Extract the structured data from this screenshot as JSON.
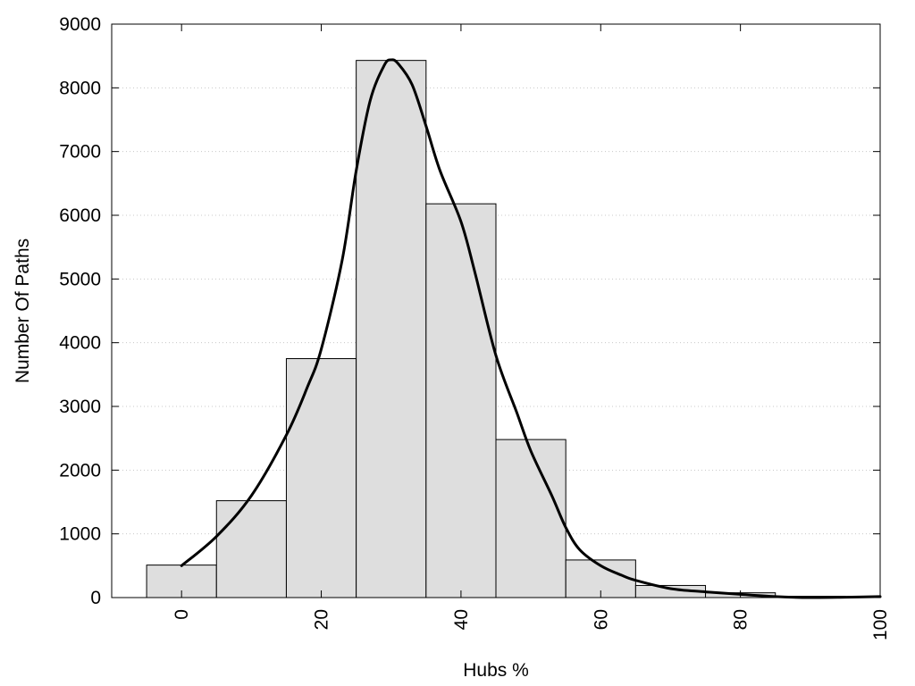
{
  "chart_data": {
    "type": "bar",
    "xlabel": "Hubs %",
    "ylabel": "Number Of Paths",
    "xlim": [
      -10,
      100
    ],
    "ylim": [
      0,
      9000
    ],
    "x_ticks": [
      0,
      20,
      40,
      60,
      80,
      100
    ],
    "y_ticks": [
      0,
      1000,
      2000,
      3000,
      4000,
      5000,
      6000,
      7000,
      8000,
      9000
    ],
    "grid": "horizontal-dotted",
    "bin_width": 10,
    "bins": [
      {
        "center": 0,
        "value": 510
      },
      {
        "center": 10,
        "value": 1520
      },
      {
        "center": 20,
        "value": 3750
      },
      {
        "center": 30,
        "value": 8430
      },
      {
        "center": 40,
        "value": 6180
      },
      {
        "center": 50,
        "value": 2480
      },
      {
        "center": 60,
        "value": 590
      },
      {
        "center": 70,
        "value": 190
      },
      {
        "center": 80,
        "value": 75
      },
      {
        "center": 90,
        "value": 20
      }
    ],
    "curve": {
      "x": [
        0,
        5,
        10,
        15,
        18,
        20,
        23,
        25,
        27,
        29,
        30,
        31,
        33,
        35,
        37,
        40,
        42,
        45,
        48,
        50,
        53,
        55,
        57,
        60,
        63,
        65,
        70,
        75,
        80,
        85,
        90,
        95,
        100
      ],
      "y": [
        500,
        960,
        1600,
        2550,
        3300,
        3900,
        5300,
        6700,
        7800,
        8350,
        8440,
        8380,
        8050,
        7400,
        6700,
        5900,
        5100,
        3800,
        2900,
        2300,
        1600,
        1100,
        750,
        500,
        350,
        270,
        140,
        90,
        50,
        15,
        0,
        5,
        15
      ]
    },
    "colors": {
      "bar_fill": "#dedede",
      "bar_stroke": "#000000",
      "curve": "#000000",
      "grid": "#c8c8c8"
    }
  }
}
